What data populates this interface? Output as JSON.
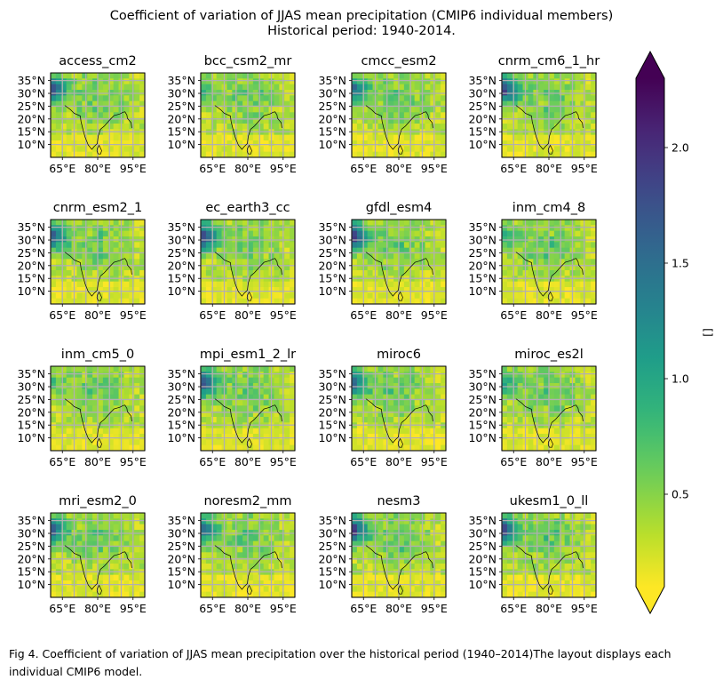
{
  "figure": {
    "title_line1": "Coefficient of variation of JJAS mean precipitation (CMIP6 individual members)",
    "title_line2": "Historical period: 1940-2014.",
    "caption": "Fig 4. Coefficient of variation of JJAS mean precipitation over the historical period (1940–2014)The layout displays each individual CMIP6 model."
  },
  "chart_data": {
    "type": "heatmap",
    "panels": [
      {
        "name": "access_cm2"
      },
      {
        "name": "bcc_csm2_mr"
      },
      {
        "name": "cmcc_esm2"
      },
      {
        "name": "cnrm_cm6_1_hr"
      },
      {
        "name": "cnrm_esm2_1"
      },
      {
        "name": "ec_earth3_cc"
      },
      {
        "name": "gfdl_esm4"
      },
      {
        "name": "inm_cm4_8"
      },
      {
        "name": "inm_cm5_0"
      },
      {
        "name": "mpi_esm1_2_lr"
      },
      {
        "name": "miroc6"
      },
      {
        "name": "miroc_es2l"
      },
      {
        "name": "mri_esm2_0"
      },
      {
        "name": "noresm2_mm"
      },
      {
        "name": "nesm3"
      },
      {
        "name": "ukesm1_0_ll"
      }
    ],
    "x_ticks": [
      "65°E",
      "80°E",
      "95°E"
    ],
    "y_ticks": [
      "35°N",
      "30°N",
      "25°N",
      "20°N",
      "15°N",
      "10°N"
    ],
    "x_tick_values": [
      65,
      80,
      95
    ],
    "y_tick_values": [
      35,
      30,
      25,
      20,
      15,
      10
    ],
    "xlim": [
      60,
      100
    ],
    "ylim": [
      5,
      38
    ],
    "grid": true,
    "colorbar": {
      "label": "[]",
      "ticks": [
        "0.5",
        "1.0",
        "1.5",
        "2.0"
      ],
      "tick_values": [
        0.5,
        1.0,
        1.5,
        2.0
      ],
      "range": [
        0.1,
        2.3
      ],
      "extend": "both",
      "colormap": "viridis_r"
    }
  }
}
